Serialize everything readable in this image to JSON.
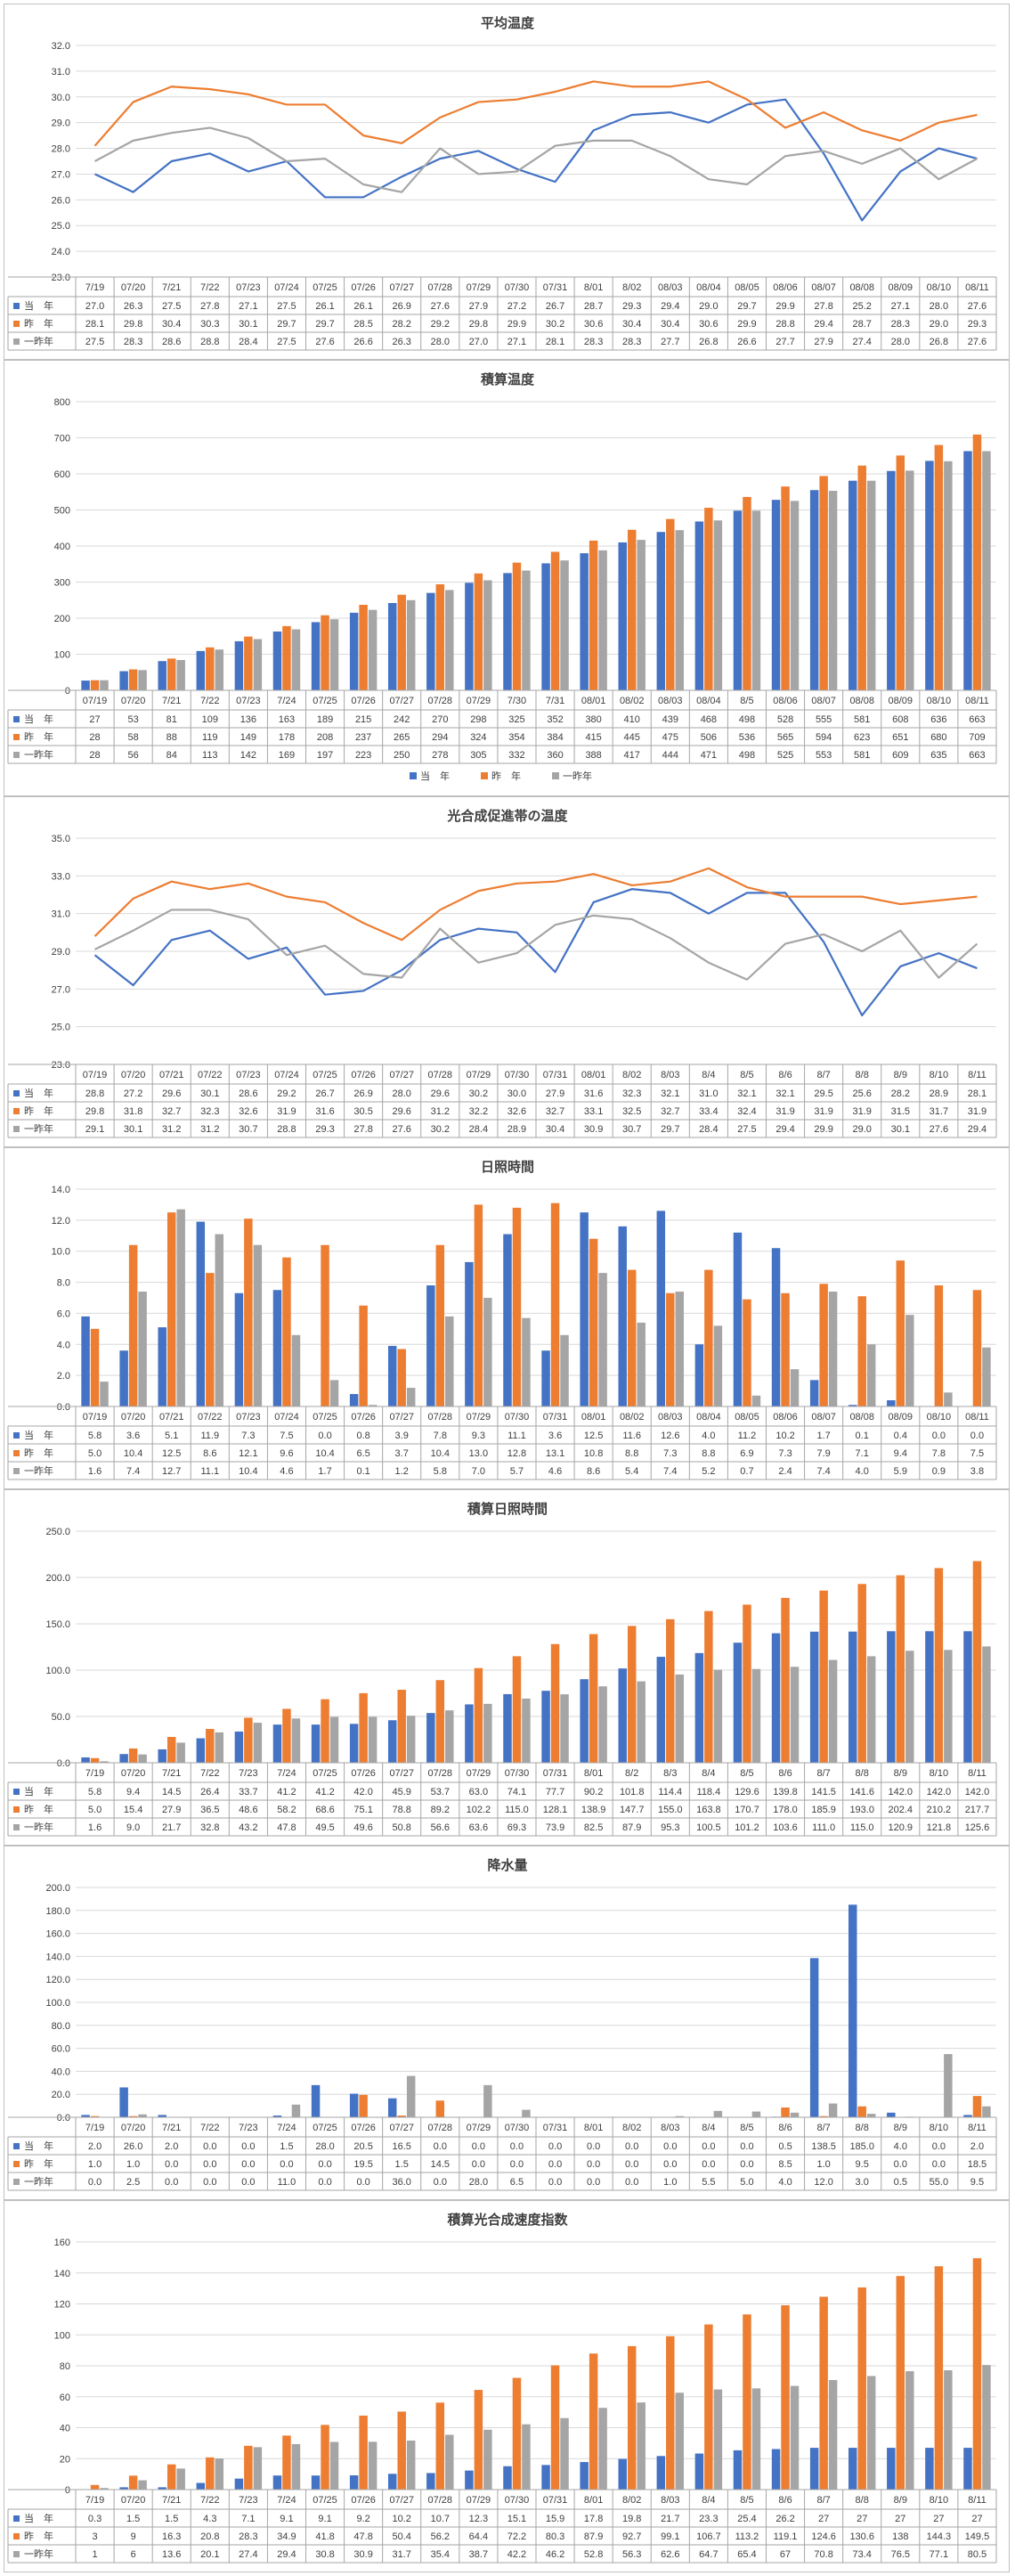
{
  "chart_data": [
    {
      "type": "line",
      "title": "平均温度",
      "categories": [
        "7/19",
        "07/20",
        "7/21",
        "7/22",
        "07/23",
        "07/24",
        "07/25",
        "07/26",
        "07/27",
        "07/28",
        "07/29",
        "07/30",
        "07/31",
        "8/01",
        "8/02",
        "08/03",
        "08/04",
        "08/05",
        "08/06",
        "08/07",
        "08/08",
        "08/09",
        "08/10",
        "08/11"
      ],
      "ylim": [
        23.0,
        32.0
      ],
      "yticks": [
        "23.0",
        "24.0",
        "25.0",
        "26.0",
        "27.0",
        "28.0",
        "29.0",
        "30.0",
        "31.0",
        "32.0"
      ],
      "grid": true,
      "series": [
        {
          "name": "当　年",
          "color": "#4472C4",
          "values": [
            "27.0",
            "26.3",
            "27.5",
            "27.8",
            "27.1",
            "27.5",
            "26.1",
            "26.1",
            "26.9",
            "27.6",
            "27.9",
            "27.2",
            "26.7",
            "28.7",
            "29.3",
            "29.4",
            "29.0",
            "29.7",
            "29.9",
            "27.8",
            "25.2",
            "27.1",
            "28.0",
            "27.6"
          ]
        },
        {
          "name": "昨　年",
          "color": "#ED7D31",
          "values": [
            "28.1",
            "29.8",
            "30.4",
            "30.3",
            "30.1",
            "29.7",
            "29.7",
            "28.5",
            "28.2",
            "29.2",
            "29.8",
            "29.9",
            "30.2",
            "30.6",
            "30.4",
            "30.4",
            "30.6",
            "29.9",
            "28.8",
            "29.4",
            "28.7",
            "28.3",
            "29.0",
            "29.3"
          ]
        },
        {
          "name": "一昨年",
          "color": "#A5A5A5",
          "values": [
            "27.5",
            "28.3",
            "28.6",
            "28.8",
            "28.4",
            "27.5",
            "27.6",
            "26.6",
            "26.3",
            "28.0",
            "27.0",
            "27.1",
            "28.1",
            "28.3",
            "28.3",
            "27.7",
            "26.8",
            "26.6",
            "27.7",
            "27.9",
            "27.4",
            "28.0",
            "26.8",
            "27.6"
          ]
        }
      ]
    },
    {
      "type": "bar",
      "title": "積算温度",
      "categories": [
        "07/19",
        "07/20",
        "7/21",
        "7/22",
        "07/23",
        "7/24",
        "07/25",
        "07/26",
        "07/27",
        "07/28",
        "07/29",
        "7/30",
        "7/31",
        "08/01",
        "08/02",
        "08/03",
        "08/04",
        "8/5",
        "08/06",
        "08/07",
        "08/08",
        "08/09",
        "08/10",
        "08/11"
      ],
      "ylim": [
        0,
        800
      ],
      "yticks": [
        "0",
        "100",
        "200",
        "300",
        "400",
        "500",
        "600",
        "700",
        "800"
      ],
      "grid": true,
      "legend": "bottom",
      "legend_labels": [
        "当　年",
        "昨　年",
        "一昨年"
      ],
      "series": [
        {
          "name": "当　年",
          "color": "#4472C4",
          "values": [
            "27",
            "53",
            "81",
            "109",
            "136",
            "163",
            "189",
            "215",
            "242",
            "270",
            "298",
            "325",
            "352",
            "380",
            "410",
            "439",
            "468",
            "498",
            "528",
            "555",
            "581",
            "608",
            "636",
            "663"
          ]
        },
        {
          "name": "昨　年",
          "color": "#ED7D31",
          "values": [
            "28",
            "58",
            "88",
            "119",
            "149",
            "178",
            "208",
            "237",
            "265",
            "294",
            "324",
            "354",
            "384",
            "415",
            "445",
            "475",
            "506",
            "536",
            "565",
            "594",
            "623",
            "651",
            "680",
            "709"
          ]
        },
        {
          "name": "一昨年",
          "color": "#A5A5A5",
          "values": [
            "28",
            "56",
            "84",
            "113",
            "142",
            "169",
            "197",
            "223",
            "250",
            "278",
            "305",
            "332",
            "360",
            "388",
            "417",
            "444",
            "471",
            "498",
            "525",
            "553",
            "581",
            "609",
            "635",
            "663"
          ]
        }
      ]
    },
    {
      "type": "line",
      "title": "光合成促進帯の温度",
      "categories": [
        "07/19",
        "07/20",
        "07/21",
        "07/22",
        "07/23",
        "07/24",
        "07/25",
        "07/26",
        "07/27",
        "07/28",
        "07/29",
        "07/30",
        "07/31",
        "08/01",
        "8/02",
        "8/03",
        "8/4",
        "8/5",
        "8/6",
        "8/7",
        "8/8",
        "8/9",
        "8/10",
        "8/11"
      ],
      "ylim": [
        23.0,
        35.0
      ],
      "yticks": [
        "23.0",
        "25.0",
        "27.0",
        "29.0",
        "31.0",
        "33.0",
        "35.0"
      ],
      "grid": true,
      "series": [
        {
          "name": "当　年",
          "color": "#4472C4",
          "values": [
            "28.8",
            "27.2",
            "29.6",
            "30.1",
            "28.6",
            "29.2",
            "26.7",
            "26.9",
            "28.0",
            "29.6",
            "30.2",
            "30.0",
            "27.9",
            "31.6",
            "32.3",
            "32.1",
            "31.0",
            "32.1",
            "32.1",
            "29.5",
            "25.6",
            "28.2",
            "28.9",
            "28.1"
          ]
        },
        {
          "name": "昨　年",
          "color": "#ED7D31",
          "values": [
            "29.8",
            "31.8",
            "32.7",
            "32.3",
            "32.6",
            "31.9",
            "31.6",
            "30.5",
            "29.6",
            "31.2",
            "32.2",
            "32.6",
            "32.7",
            "33.1",
            "32.5",
            "32.7",
            "33.4",
            "32.4",
            "31.9",
            "31.9",
            "31.9",
            "31.5",
            "31.7",
            "31.9"
          ]
        },
        {
          "name": "一昨年",
          "color": "#A5A5A5",
          "values": [
            "29.1",
            "30.1",
            "31.2",
            "31.2",
            "30.7",
            "28.8",
            "29.3",
            "27.8",
            "27.6",
            "30.2",
            "28.4",
            "28.9",
            "30.4",
            "30.9",
            "30.7",
            "29.7",
            "28.4",
            "27.5",
            "29.4",
            "29.9",
            "29.0",
            "30.1",
            "27.6",
            "29.4"
          ]
        }
      ]
    },
    {
      "type": "bar",
      "title": "日照時間",
      "categories": [
        "07/19",
        "07/20",
        "07/21",
        "07/22",
        "07/23",
        "07/24",
        "07/25",
        "07/26",
        "07/27",
        "07/28",
        "07/29",
        "07/30",
        "07/31",
        "08/01",
        "08/02",
        "08/03",
        "08/04",
        "08/05",
        "08/06",
        "08/07",
        "08/08",
        "08/09",
        "08/10",
        "08/11"
      ],
      "ylim": [
        0.0,
        14.0
      ],
      "yticks": [
        "0.0",
        "2.0",
        "4.0",
        "6.0",
        "8.0",
        "10.0",
        "12.0",
        "14.0"
      ],
      "grid": true,
      "series": [
        {
          "name": "当　年",
          "color": "#4472C4",
          "values": [
            "5.8",
            "3.6",
            "5.1",
            "11.9",
            "7.3",
            "7.5",
            "0.0",
            "0.8",
            "3.9",
            "7.8",
            "9.3",
            "11.1",
            "3.6",
            "12.5",
            "11.6",
            "12.6",
            "4.0",
            "11.2",
            "10.2",
            "1.7",
            "0.1",
            "0.4",
            "0.0",
            "0.0"
          ]
        },
        {
          "name": "昨　年",
          "color": "#ED7D31",
          "values": [
            "5.0",
            "10.4",
            "12.5",
            "8.6",
            "12.1",
            "9.6",
            "10.4",
            "6.5",
            "3.7",
            "10.4",
            "13.0",
            "12.8",
            "13.1",
            "10.8",
            "8.8",
            "7.3",
            "8.8",
            "6.9",
            "7.3",
            "7.9",
            "7.1",
            "9.4",
            "7.8",
            "7.5"
          ]
        },
        {
          "name": "一昨年",
          "color": "#A5A5A5",
          "values": [
            "1.6",
            "7.4",
            "12.7",
            "11.1",
            "10.4",
            "4.6",
            "1.7",
            "0.1",
            "1.2",
            "5.8",
            "7.0",
            "5.7",
            "4.6",
            "8.6",
            "5.4",
            "7.4",
            "5.2",
            "0.7",
            "2.4",
            "7.4",
            "4.0",
            "5.9",
            "0.9",
            "3.8"
          ]
        }
      ]
    },
    {
      "type": "bar",
      "title": "積算日照時間",
      "categories": [
        "7/19",
        "07/20",
        "7/21",
        "7/22",
        "7/23",
        "7/24",
        "07/25",
        "07/26",
        "07/27",
        "07/28",
        "07/29",
        "07/30",
        "07/31",
        "8/01",
        "8/2",
        "8/3",
        "8/4",
        "8/5",
        "8/6",
        "8/7",
        "8/8",
        "8/9",
        "8/10",
        "8/11"
      ],
      "ylim": [
        0.0,
        250.0
      ],
      "yticks": [
        "0.0",
        "50.0",
        "100.0",
        "150.0",
        "200.0",
        "250.0"
      ],
      "grid": true,
      "series": [
        {
          "name": "当　年",
          "color": "#4472C4",
          "values": [
            "5.8",
            "9.4",
            "14.5",
            "26.4",
            "33.7",
            "41.2",
            "41.2",
            "42.0",
            "45.9",
            "53.7",
            "63.0",
            "74.1",
            "77.7",
            "90.2",
            "101.8",
            "114.4",
            "118.4",
            "129.6",
            "139.8",
            "141.5",
            "141.6",
            "142.0",
            "142.0",
            "142.0"
          ]
        },
        {
          "name": "昨　年",
          "color": "#ED7D31",
          "values": [
            "5.0",
            "15.4",
            "27.9",
            "36.5",
            "48.6",
            "58.2",
            "68.6",
            "75.1",
            "78.8",
            "89.2",
            "102.2",
            "115.0",
            "128.1",
            "138.9",
            "147.7",
            "155.0",
            "163.8",
            "170.7",
            "178.0",
            "185.9",
            "193.0",
            "202.4",
            "210.2",
            "217.7"
          ]
        },
        {
          "name": "一昨年",
          "color": "#A5A5A5",
          "values": [
            "1.6",
            "9.0",
            "21.7",
            "32.8",
            "43.2",
            "47.8",
            "49.5",
            "49.6",
            "50.8",
            "56.6",
            "63.6",
            "69.3",
            "73.9",
            "82.5",
            "87.9",
            "95.3",
            "100.5",
            "101.2",
            "103.6",
            "111.0",
            "115.0",
            "120.9",
            "121.8",
            "125.6"
          ]
        }
      ]
    },
    {
      "type": "bar",
      "title": "降水量",
      "categories": [
        "7/19",
        "07/20",
        "7/21",
        "7/22",
        "7/23",
        "7/24",
        "07/25",
        "07/26",
        "07/27",
        "07/28",
        "07/29",
        "07/30",
        "07/31",
        "8/01",
        "8/02",
        "8/03",
        "8/4",
        "8/5",
        "8/6",
        "8/7",
        "8/8",
        "8/9",
        "8/10",
        "8/11"
      ],
      "ylim": [
        0.0,
        200.0
      ],
      "yticks": [
        "0.0",
        "20.0",
        "40.0",
        "60.0",
        "80.0",
        "100.0",
        "120.0",
        "140.0",
        "160.0",
        "180.0",
        "200.0"
      ],
      "grid": true,
      "series": [
        {
          "name": "当　年",
          "color": "#4472C4",
          "values": [
            "2.0",
            "26.0",
            "2.0",
            "0.0",
            "0.0",
            "1.5",
            "28.0",
            "20.5",
            "16.5",
            "0.0",
            "0.0",
            "0.0",
            "0.0",
            "0.0",
            "0.0",
            "0.0",
            "0.0",
            "0.0",
            "0.5",
            "138.5",
            "185.0",
            "4.0",
            "0.0",
            "2.0"
          ]
        },
        {
          "name": "昨　年",
          "color": "#ED7D31",
          "values": [
            "1.0",
            "1.0",
            "0.0",
            "0.0",
            "0.0",
            "0.0",
            "0.0",
            "19.5",
            "1.5",
            "14.5",
            "0.0",
            "0.0",
            "0.0",
            "0.0",
            "0.0",
            "0.0",
            "0.0",
            "0.0",
            "8.5",
            "1.0",
            "9.5",
            "0.0",
            "0.0",
            "18.5"
          ]
        },
        {
          "name": "一昨年",
          "color": "#A5A5A5",
          "values": [
            "0.0",
            "2.5",
            "0.0",
            "0.0",
            "0.0",
            "11.0",
            "0.0",
            "0.0",
            "36.0",
            "0.0",
            "28.0",
            "6.5",
            "0.0",
            "0.0",
            "0.0",
            "1.0",
            "5.5",
            "5.0",
            "4.0",
            "12.0",
            "3.0",
            "0.5",
            "55.0",
            "9.5"
          ]
        }
      ]
    },
    {
      "type": "bar",
      "title": "積算光合成速度指数",
      "categories": [
        "7/19",
        "07/20",
        "7/21",
        "7/22",
        "7/23",
        "7/24",
        "07/25",
        "07/26",
        "07/27",
        "07/28",
        "07/29",
        "07/30",
        "07/31",
        "8/01",
        "8/02",
        "8/03",
        "8/4",
        "8/5",
        "8/6",
        "8/7",
        "8/8",
        "8/9",
        "8/10",
        "8/11"
      ],
      "ylim": [
        0,
        160
      ],
      "yticks": [
        "0",
        "20",
        "40",
        "60",
        "80",
        "100",
        "120",
        "140",
        "160"
      ],
      "grid": true,
      "series": [
        {
          "name": "当　年",
          "color": "#4472C4",
          "values": [
            "0.3",
            "1.5",
            "1.5",
            "4.3",
            "7.1",
            "9.1",
            "9.1",
            "9.2",
            "10.2",
            "10.7",
            "12.3",
            "15.1",
            "15.9",
            "17.8",
            "19.8",
            "21.7",
            "23.3",
            "25.4",
            "26.2",
            "27",
            "27",
            "27",
            "27",
            "27"
          ]
        },
        {
          "name": "昨　年",
          "color": "#ED7D31",
          "values": [
            "3",
            "9",
            "16.3",
            "20.8",
            "28.3",
            "34.9",
            "41.8",
            "47.8",
            "50.4",
            "56.2",
            "64.4",
            "72.2",
            "80.3",
            "87.9",
            "92.7",
            "99.1",
            "106.7",
            "113.2",
            "119.1",
            "124.6",
            "130.6",
            "138",
            "144.3",
            "149.5"
          ]
        },
        {
          "name": "一昨年",
          "color": "#A5A5A5",
          "values": [
            "1",
            "6",
            "13.6",
            "20.1",
            "27.4",
            "29.4",
            "30.8",
            "30.9",
            "31.7",
            "35.4",
            "38.7",
            "42.2",
            "46.2",
            "52.8",
            "56.3",
            "62.6",
            "64.7",
            "65.4",
            "67",
            "70.8",
            "73.4",
            "76.5",
            "77.1",
            "80.5"
          ]
        }
      ]
    }
  ]
}
